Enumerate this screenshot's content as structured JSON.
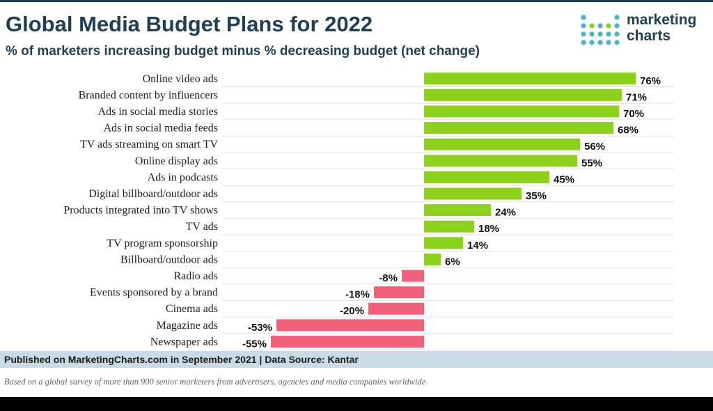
{
  "header": {
    "title": "Global Media Budget Plans for 2022",
    "subtitle": "% of marketers increasing budget minus % decreasing budget (net change)"
  },
  "logo": {
    "line1": "marketing",
    "line2": "charts"
  },
  "footer": {
    "source": "Published on MarketingCharts.com in September 2021 | Data Source: Kantar",
    "note": "Based on a global survey of more than 900 senior marketers from advertisers, agencies and media companies worldwide"
  },
  "colors": {
    "positive": "#8cd21a",
    "negative": "#f2607a",
    "title": "#1f3f57",
    "footer_bg": "#c9dbe6"
  },
  "chart_data": {
    "type": "bar",
    "orientation": "horizontal",
    "categories": [
      "Online video ads",
      "Branded content by influencers",
      "Ads in social media stories",
      "Ads in social media feeds",
      "TV ads streaming on smart TV",
      "Online display ads",
      "Ads in podcasts",
      "Digital billboard/outdoor ads",
      "Products integrated into TV shows",
      "TV ads",
      "TV program sponsorship",
      "Billboard/outdoor ads",
      "Radio ads",
      "Events sponsored by a brand",
      "Cinema ads",
      "Magazine ads",
      "Newspaper ads"
    ],
    "values": [
      76,
      71,
      70,
      68,
      56,
      55,
      45,
      35,
      24,
      18,
      14,
      6,
      -8,
      -18,
      -20,
      -53,
      -55
    ],
    "data_labels": [
      "76%",
      "71%",
      "70%",
      "68%",
      "56%",
      "55%",
      "45%",
      "35%",
      "24%",
      "18%",
      "14%",
      "6%",
      "-8%",
      "-18%",
      "-20%",
      "-53%",
      "-55%"
    ],
    "xlim": [
      -60,
      80
    ],
    "grid": "horizontal separators",
    "legend": "none"
  }
}
